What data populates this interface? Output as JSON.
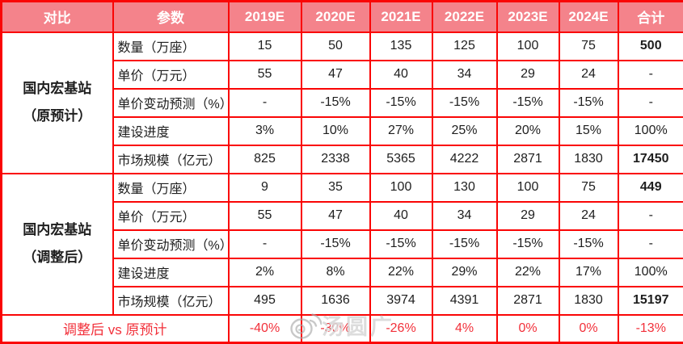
{
  "table": {
    "header": [
      "对比",
      "参数",
      "2019E",
      "2020E",
      "2021E",
      "2022E",
      "2023E",
      "2024E",
      "合计"
    ],
    "sections": [
      {
        "group_label": [
          "国内宏基站",
          "（原预计）"
        ],
        "rows": [
          {
            "label": "数量（万座）",
            "values": [
              "15",
              "50",
              "135",
              "125",
              "100",
              "75"
            ],
            "total": "500",
            "total_bold": true
          },
          {
            "label": "单价（万元）",
            "values": [
              "55",
              "47",
              "40",
              "34",
              "29",
              "24"
            ],
            "total": "-",
            "total_bold": false
          },
          {
            "label": "单价变动预测（%）",
            "values": [
              "-",
              "-15%",
              "-15%",
              "-15%",
              "-15%",
              "-15%"
            ],
            "total": "-",
            "total_bold": false
          },
          {
            "label": "建设进度",
            "values": [
              "3%",
              "10%",
              "27%",
              "25%",
              "20%",
              "15%"
            ],
            "total": "100%",
            "total_bold": false
          },
          {
            "label": "市场规模（亿元）",
            "values": [
              "825",
              "2338",
              "5365",
              "4222",
              "2871",
              "1830"
            ],
            "total": "17450",
            "total_bold": true
          }
        ]
      },
      {
        "group_label": [
          "国内宏基站",
          "（调整后）"
        ],
        "rows": [
          {
            "label": "数量（万座）",
            "values": [
              "9",
              "35",
              "100",
              "130",
              "100",
              "75"
            ],
            "total": "449",
            "total_bold": true
          },
          {
            "label": "单价（万元）",
            "values": [
              "55",
              "47",
              "40",
              "34",
              "29",
              "24"
            ],
            "total": "-",
            "total_bold": false
          },
          {
            "label": "单价变动预测（%）",
            "values": [
              "-",
              "-15%",
              "-15%",
              "-15%",
              "-15%",
              "-15%"
            ],
            "total": "-",
            "total_bold": false
          },
          {
            "label": "建设进度",
            "values": [
              "2%",
              "8%",
              "22%",
              "29%",
              "22%",
              "17%"
            ],
            "total": "100%",
            "total_bold": false
          },
          {
            "label": "市场规模（亿元）",
            "values": [
              "495",
              "1636",
              "3974",
              "4391",
              "2871",
              "1830"
            ],
            "total": "15197",
            "total_bold": true
          }
        ]
      }
    ],
    "footer": {
      "label": "调整后 vs 原预计",
      "values": [
        "-40%",
        "-30%",
        "-26%",
        "4%",
        "0%",
        "0%",
        "-13%"
      ]
    }
  },
  "watermark": {
    "icon": "weibo-eye-icon",
    "text": "汤圆广"
  },
  "colors": {
    "header_bg": "#f4838b",
    "border_red": "#fa0505",
    "footer_text_red": "#f2303a",
    "body_text": "#1e1e1e",
    "header_text": "#ffffff"
  }
}
